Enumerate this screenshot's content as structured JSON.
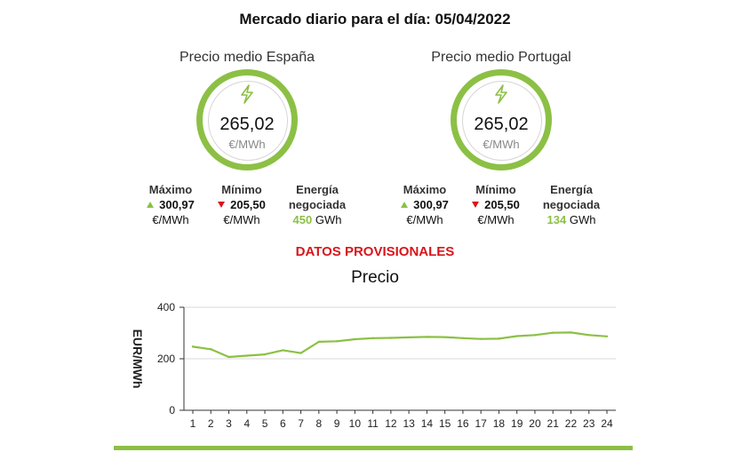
{
  "title": "Mercado diario para el día: 05/04/2022",
  "colors": {
    "accent": "#8cc045",
    "alert": "#d8151b"
  },
  "spain": {
    "title": "Precio medio España",
    "value": "265,02",
    "unit": "€/MWh",
    "max_label": "Máximo",
    "max_value": "300,97",
    "max_unit": "€/MWh",
    "min_label": "Mínimo",
    "min_value": "205,50",
    "min_unit": "€/MWh",
    "energy_label_1": "Energía",
    "energy_label_2": "negociada",
    "energy_value": "450",
    "energy_unit": "GWh"
  },
  "portugal": {
    "title": "Precio medio Portugal",
    "value": "265,02",
    "unit": "€/MWh",
    "max_label": "Máximo",
    "max_value": "300,97",
    "max_unit": "€/MWh",
    "min_label": "Mínimo",
    "min_value": "205,50",
    "min_unit": "€/MWh",
    "energy_label_1": "Energía",
    "energy_label_2": "negociada",
    "energy_value": "134",
    "energy_unit": "GWh"
  },
  "provisional_label": "DATOS PROVISIONALES",
  "chart_data": {
    "type": "line",
    "title": "Precio",
    "xlabel": "",
    "ylabel": "EUR/MWh",
    "x": [
      1,
      2,
      3,
      4,
      5,
      6,
      7,
      8,
      9,
      10,
      11,
      12,
      13,
      14,
      15,
      16,
      17,
      18,
      19,
      20,
      21,
      22,
      23,
      24
    ],
    "series": [
      {
        "values": [
          247,
          237,
          207,
          212,
          217,
          233,
          222,
          266,
          268,
          276,
          280,
          281,
          283,
          285,
          284,
          280,
          277,
          278,
          288,
          292,
          301,
          302,
          292,
          287
        ]
      }
    ],
    "ylim": [
      0,
      400
    ],
    "yticks": [
      0,
      200,
      400
    ],
    "grid": true,
    "color": "#8cc045"
  }
}
